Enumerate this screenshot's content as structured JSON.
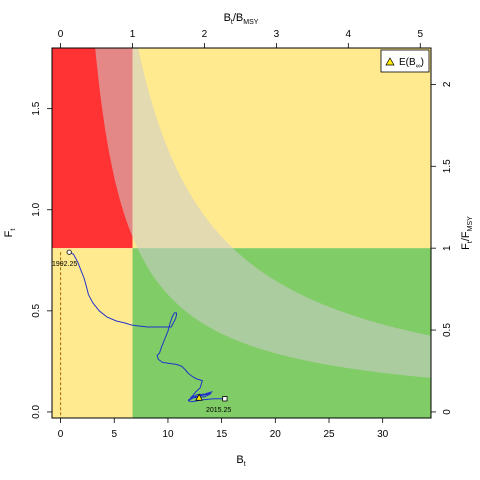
{
  "chart_data": {
    "type": "line",
    "xlabel": {
      "main": "B",
      "sub": "t"
    },
    "ylabel": {
      "main": "F",
      "sub": "t"
    },
    "x2label": {
      "main": "B",
      "sub": "t",
      "slash": "/B",
      "sub2": "MSY"
    },
    "y2label": {
      "main": "F",
      "sub": "t",
      "slash": "/F",
      "sub2": "MSY"
    },
    "xlim": [
      -0.8,
      34.5
    ],
    "ylim": [
      -0.03,
      1.8
    ],
    "x_ticks": [
      0,
      5,
      10,
      15,
      20,
      25,
      30
    ],
    "y_ticks": [
      0.0,
      0.5,
      1.0,
      1.5
    ],
    "x2_ticks": [
      0,
      1,
      2,
      3,
      4,
      5
    ],
    "y2_ticks": [
      0,
      0.5,
      1,
      1.5,
      2
    ],
    "bmsy": 6.7,
    "fmsy": 0.81,
    "colors": {
      "red": "#ff3333",
      "yellow": "#ffea90",
      "green": "#80cc66",
      "band": "#cccccc",
      "trajectory": "#2233cc",
      "dashed": "#aa6600"
    },
    "equilibrium_band": {
      "upper_c": 13.0,
      "lower_c": 5.8,
      "upper_x0": 0.8,
      "lower_x0": 0.8
    },
    "trajectory": {
      "x": [
        0.8,
        1.2,
        1.6,
        1.9,
        2.2,
        2.4,
        2.6,
        3.0,
        3.6,
        4.3,
        5.2,
        6.0,
        6.6,
        7.3,
        8.1,
        9.0,
        9.8,
        10.3,
        10.5,
        10.7,
        10.8,
        10.8,
        10.6,
        10.4,
        10.2,
        10.0,
        9.7,
        9.4,
        9.2,
        9.0,
        9.1,
        9.5,
        10.1,
        10.8,
        11.3,
        11.6,
        11.9,
        12.3,
        12.6,
        12.9,
        13.2,
        13.0,
        12.6,
        12.3,
        12.1,
        12.7,
        13.8,
        14.1,
        12.9,
        11.9,
        12.3,
        13.4,
        14.0,
        12.5,
        11.9,
        12.2,
        13.3,
        14.3,
        15.3
      ],
      "y": [
        0.79,
        0.78,
        0.74,
        0.7,
        0.66,
        0.62,
        0.58,
        0.54,
        0.5,
        0.47,
        0.45,
        0.44,
        0.43,
        0.425,
        0.42,
        0.42,
        0.42,
        0.42,
        0.44,
        0.46,
        0.48,
        0.49,
        0.49,
        0.47,
        0.44,
        0.4,
        0.36,
        0.32,
        0.29,
        0.28,
        0.26,
        0.245,
        0.24,
        0.235,
        0.225,
        0.21,
        0.19,
        0.175,
        0.165,
        0.16,
        0.155,
        0.12,
        0.1,
        0.08,
        0.07,
        0.085,
        0.09,
        0.1,
        0.08,
        0.06,
        0.07,
        0.075,
        0.09,
        0.075,
        0.055,
        0.05,
        0.06,
        0.065,
        0.065
      ]
    },
    "start_label": "1992.25",
    "end_label": "2015.25",
    "legend": {
      "label_main": "E(B",
      "label_sub": "∞",
      "label_close": ")",
      "marker_point": {
        "x": 12.9,
        "y": 0.07
      },
      "placement": "top-right"
    }
  }
}
